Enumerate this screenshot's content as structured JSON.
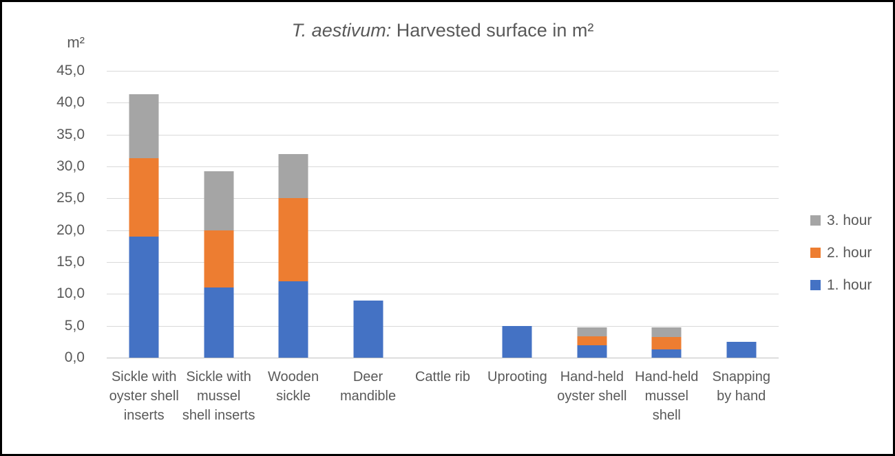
{
  "window": {
    "background": "#FFFFFF",
    "border_color": "#000000"
  },
  "chart_data": {
    "type": "bar",
    "stacked": true,
    "title": "T. aestivum: Harvested surface in m²",
    "title_italic": "T. aestivum:",
    "title_rest": " Harvested surface in m²",
    "ylabel": "m²",
    "xlabel": "",
    "ylim": [
      0,
      45
    ],
    "grid": true,
    "legend_position": "right",
    "legend_order_top_to_bottom": [
      "3. hour",
      "2. hour",
      "1. hour"
    ],
    "yticks": [
      {
        "value": 45,
        "label": "45,0"
      },
      {
        "value": 40,
        "label": "40,0"
      },
      {
        "value": 35,
        "label": "35,0"
      },
      {
        "value": 30,
        "label": "30,0"
      },
      {
        "value": 25,
        "label": "25,0"
      },
      {
        "value": 20,
        "label": "20,0"
      },
      {
        "value": 15,
        "label": "15,0"
      },
      {
        "value": 10,
        "label": "10,0"
      },
      {
        "value": 5,
        "label": "5,0"
      },
      {
        "value": 0,
        "label": "0,0"
      }
    ],
    "categories": [
      "Sickle with oyster shell inserts",
      "Sickle with mussel shell inserts",
      "Wooden sickle",
      "Deer mandible",
      "Cattle rib",
      "Uprooting",
      "Hand-held oyster shell",
      "Hand-held mussel shell",
      "Snapping by hand"
    ],
    "series": [
      {
        "name": "1. hour",
        "color": "#4472C4",
        "values": [
          19.0,
          11.0,
          12.0,
          9.0,
          0,
          5.0,
          1.9,
          1.3,
          2.5
        ]
      },
      {
        "name": "2. hour",
        "color": "#ED7D31",
        "values": [
          12.3,
          9.0,
          13.0,
          0,
          0,
          0,
          1.5,
          1.9,
          0
        ]
      },
      {
        "name": "3. hour",
        "color": "#A5A5A5",
        "values": [
          10.0,
          9.3,
          7.0,
          0,
          0,
          0,
          1.3,
          1.5,
          0
        ]
      }
    ],
    "colors": {
      "grid": "#D9D9D9",
      "axis": "#C0C0C0",
      "text": "#595959"
    }
  }
}
